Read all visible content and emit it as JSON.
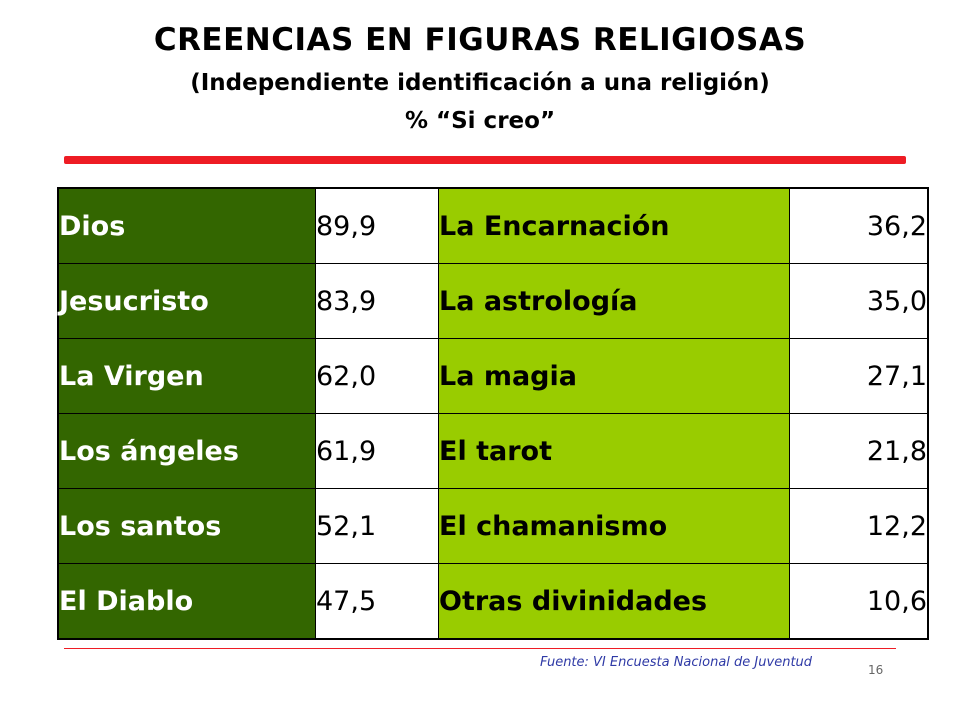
{
  "title": {
    "main": "CREENCIAS EN FIGURAS RELIGIOSAS",
    "sub": "(Independiente identificación a una religión)",
    "unit": "% “Si creo”"
  },
  "table": {
    "rows": [
      {
        "left_label": "Dios",
        "left_value": "89,9",
        "right_label": "La Encarnación",
        "right_value": "36,2"
      },
      {
        "left_label": "Jesucristo",
        "left_value": "83,9",
        "right_label": "La astrología",
        "right_value": "35,0"
      },
      {
        "left_label": "La Virgen",
        "left_value": "62,0",
        "right_label": "La magia",
        "right_value": "27,1"
      },
      {
        "left_label": "Los ángeles",
        "left_value": "61,9",
        "right_label": "El tarot",
        "right_value": "21,8"
      },
      {
        "left_label": "Los santos",
        "left_value": "52,1",
        "right_label": "El chamanismo",
        "right_value": "12,2"
      },
      {
        "left_label": "El Diablo",
        "left_value": "47,5",
        "right_label": "Otras divinidades",
        "right_value": "10,6"
      }
    ]
  },
  "footer": {
    "source": "Fuente: VI Encuesta Nacional de Juventud",
    "page_number": "16"
  },
  "colors": {
    "dark_green": "#336600",
    "light_green": "#99cc00",
    "accent_red": "#ee1c24",
    "source_blue": "#2f3aa6"
  }
}
